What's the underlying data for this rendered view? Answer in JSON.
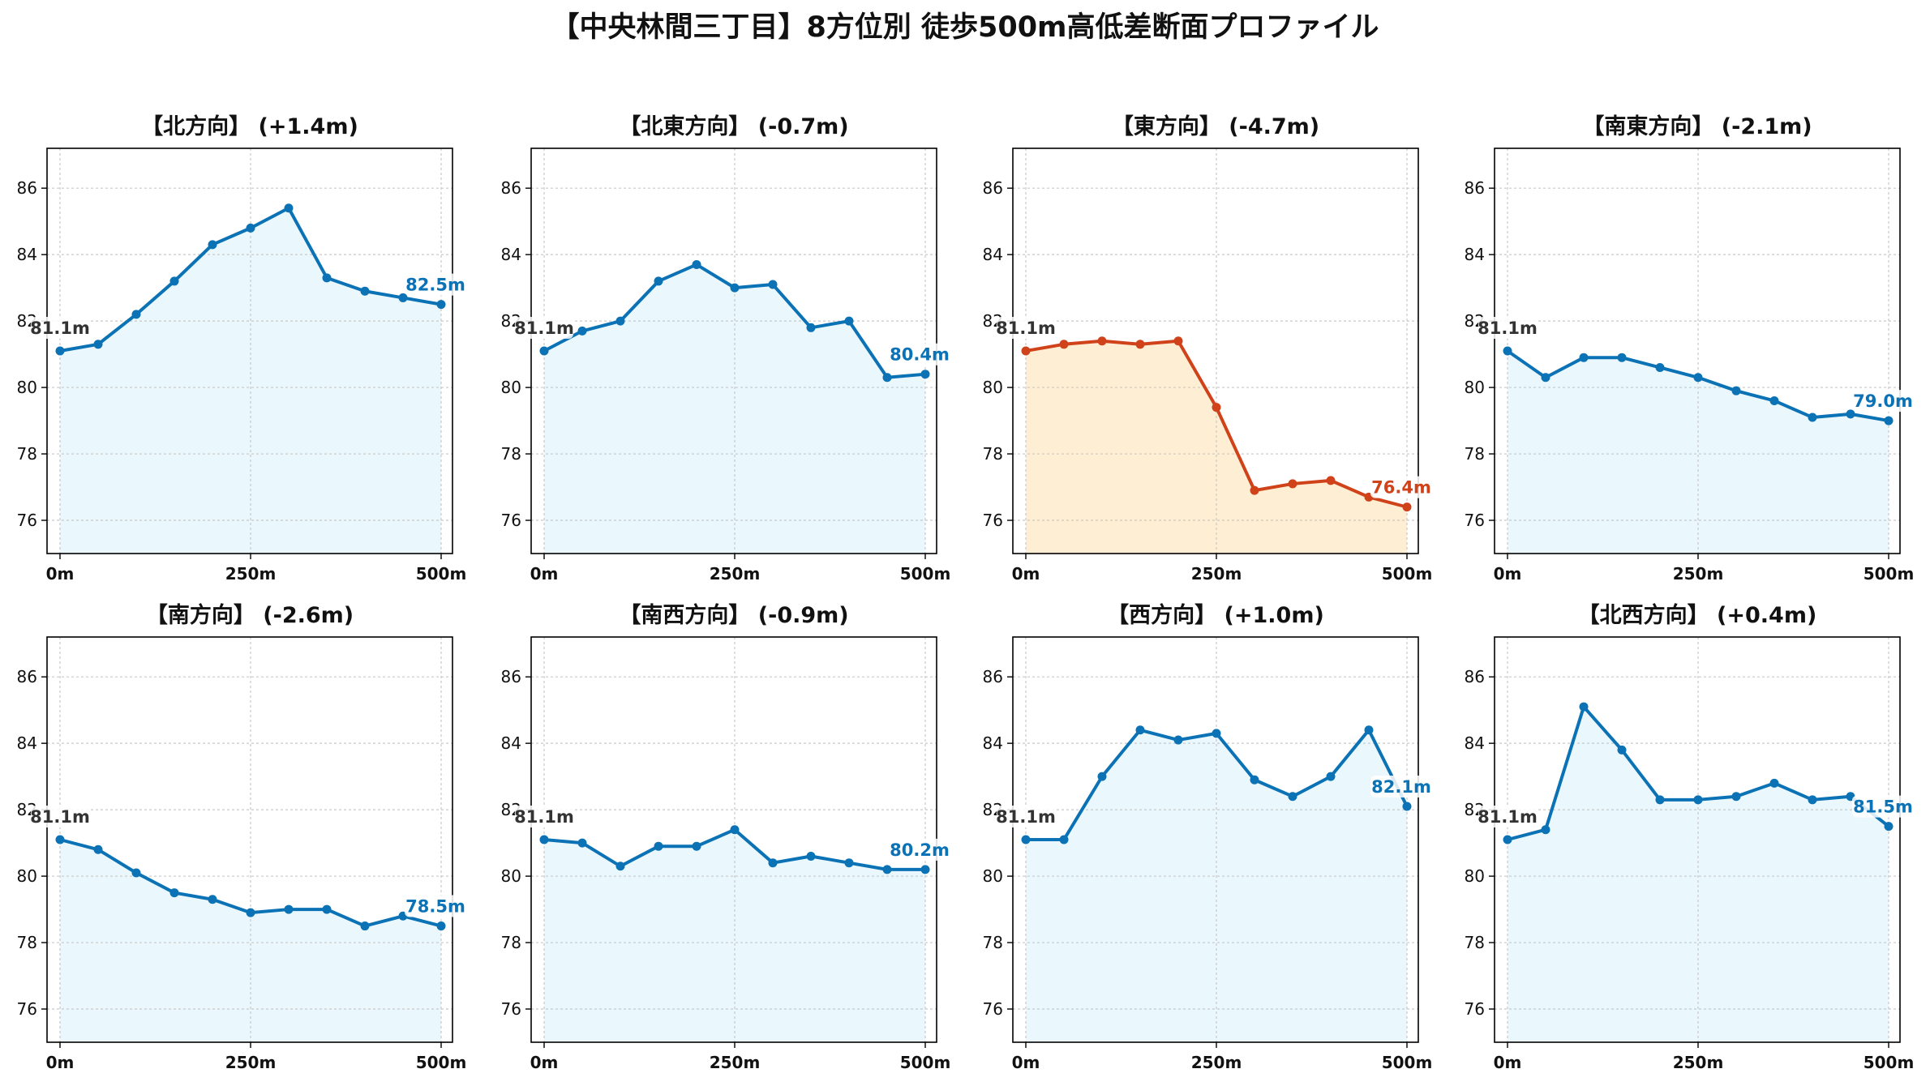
{
  "title": "【中央林間三丁目】8方位別 徒歩500m高低差断面プロファイル",
  "colors": {
    "normal_line": "#0a72b5",
    "normal_fill": "#eaf7fc",
    "alert_line": "#d0431a",
    "alert_fill": "#feeed3",
    "grid": "#c8c8c8",
    "start_label": "#333333"
  },
  "chart_data": [
    {
      "type": "area",
      "title": "【北方向】 (+1.4m)",
      "x": [
        0,
        50,
        100,
        150,
        200,
        250,
        300,
        350,
        400,
        450,
        500
      ],
      "y": [
        81.1,
        81.3,
        82.2,
        83.2,
        84.3,
        84.8,
        85.4,
        83.3,
        82.9,
        82.7,
        82.5
      ],
      "xticks": [
        0,
        250,
        500
      ],
      "xtick_labels": [
        "0m",
        "250m",
        "500m"
      ],
      "ylim": [
        75,
        87.2
      ],
      "yticks": [
        76,
        78,
        80,
        82,
        84,
        86
      ],
      "ytick_labels": [
        "76",
        "78",
        "80",
        "82",
        "84",
        "86"
      ],
      "start_label": "81.1m",
      "end_label": "82.5m",
      "highlight": false,
      "grid": true
    },
    {
      "type": "area",
      "title": "【北東方向】 (-0.7m)",
      "x": [
        0,
        50,
        100,
        150,
        200,
        250,
        300,
        350,
        400,
        450,
        500
      ],
      "y": [
        81.1,
        81.7,
        82.0,
        83.2,
        83.7,
        83.0,
        83.1,
        81.8,
        82.0,
        80.3,
        80.4
      ],
      "xticks": [
        0,
        250,
        500
      ],
      "xtick_labels": [
        "0m",
        "250m",
        "500m"
      ],
      "ylim": [
        75,
        87.2
      ],
      "yticks": [
        76,
        78,
        80,
        82,
        84,
        86
      ],
      "ytick_labels": [
        "76",
        "78",
        "80",
        "82",
        "84",
        "86"
      ],
      "start_label": "81.1m",
      "end_label": "80.4m",
      "highlight": false,
      "grid": true
    },
    {
      "type": "area",
      "title": "【東方向】 (-4.7m)",
      "x": [
        0,
        50,
        100,
        150,
        200,
        250,
        300,
        350,
        400,
        450,
        500
      ],
      "y": [
        81.1,
        81.3,
        81.4,
        81.3,
        81.4,
        79.4,
        76.9,
        77.1,
        77.2,
        76.7,
        76.4
      ],
      "xticks": [
        0,
        250,
        500
      ],
      "xtick_labels": [
        "0m",
        "250m",
        "500m"
      ],
      "ylim": [
        75,
        87.2
      ],
      "yticks": [
        76,
        78,
        80,
        82,
        84,
        86
      ],
      "ytick_labels": [
        "76",
        "78",
        "80",
        "82",
        "84",
        "86"
      ],
      "start_label": "81.1m",
      "end_label": "76.4m",
      "highlight": true,
      "grid": true
    },
    {
      "type": "area",
      "title": "【南東方向】 (-2.1m)",
      "x": [
        0,
        50,
        100,
        150,
        200,
        250,
        300,
        350,
        400,
        450,
        500
      ],
      "y": [
        81.1,
        80.3,
        80.9,
        80.9,
        80.6,
        80.3,
        79.9,
        79.6,
        79.1,
        79.2,
        79.0
      ],
      "xticks": [
        0,
        250,
        500
      ],
      "xtick_labels": [
        "0m",
        "250m",
        "500m"
      ],
      "ylim": [
        75,
        87.2
      ],
      "yticks": [
        76,
        78,
        80,
        82,
        84,
        86
      ],
      "ytick_labels": [
        "76",
        "78",
        "80",
        "82",
        "84",
        "86"
      ],
      "start_label": "81.1m",
      "end_label": "79.0m",
      "highlight": false,
      "grid": true
    },
    {
      "type": "area",
      "title": "【南方向】 (-2.6m)",
      "x": [
        0,
        50,
        100,
        150,
        200,
        250,
        300,
        350,
        400,
        450,
        500
      ],
      "y": [
        81.1,
        80.8,
        80.1,
        79.5,
        79.3,
        78.9,
        79.0,
        79.0,
        78.5,
        78.8,
        78.5
      ],
      "xticks": [
        0,
        250,
        500
      ],
      "xtick_labels": [
        "0m",
        "250m",
        "500m"
      ],
      "ylim": [
        75,
        87.2
      ],
      "yticks": [
        76,
        78,
        80,
        82,
        84,
        86
      ],
      "ytick_labels": [
        "76",
        "78",
        "80",
        "82",
        "84",
        "86"
      ],
      "start_label": "81.1m",
      "end_label": "78.5m",
      "highlight": false,
      "grid": true
    },
    {
      "type": "area",
      "title": "【南西方向】 (-0.9m)",
      "x": [
        0,
        50,
        100,
        150,
        200,
        250,
        300,
        350,
        400,
        450,
        500
      ],
      "y": [
        81.1,
        81.0,
        80.3,
        80.9,
        80.9,
        81.4,
        80.4,
        80.6,
        80.4,
        80.2,
        80.2
      ],
      "xticks": [
        0,
        250,
        500
      ],
      "xtick_labels": [
        "0m",
        "250m",
        "500m"
      ],
      "ylim": [
        75,
        87.2
      ],
      "yticks": [
        76,
        78,
        80,
        82,
        84,
        86
      ],
      "ytick_labels": [
        "76",
        "78",
        "80",
        "82",
        "84",
        "86"
      ],
      "start_label": "81.1m",
      "end_label": "80.2m",
      "highlight": false,
      "grid": true
    },
    {
      "type": "area",
      "title": "【西方向】 (+1.0m)",
      "x": [
        0,
        50,
        100,
        150,
        200,
        250,
        300,
        350,
        400,
        450,
        500
      ],
      "y": [
        81.1,
        81.1,
        83.0,
        84.4,
        84.1,
        84.3,
        82.9,
        82.4,
        83.0,
        84.4,
        82.1
      ],
      "xticks": [
        0,
        250,
        500
      ],
      "xtick_labels": [
        "0m",
        "250m",
        "500m"
      ],
      "ylim": [
        75,
        87.2
      ],
      "yticks": [
        76,
        78,
        80,
        82,
        84,
        86
      ],
      "ytick_labels": [
        "76",
        "78",
        "80",
        "82",
        "84",
        "86"
      ],
      "start_label": "81.1m",
      "end_label": "82.1m",
      "highlight": false,
      "grid": true
    },
    {
      "type": "area",
      "title": "【北西方向】 (+0.4m)",
      "x": [
        0,
        50,
        100,
        150,
        200,
        250,
        300,
        350,
        400,
        450,
        500
      ],
      "y": [
        81.1,
        81.4,
        85.1,
        83.8,
        82.3,
        82.3,
        82.4,
        82.8,
        82.3,
        82.4,
        81.5
      ],
      "xticks": [
        0,
        250,
        500
      ],
      "xtick_labels": [
        "0m",
        "250m",
        "500m"
      ],
      "ylim": [
        75,
        87.2
      ],
      "yticks": [
        76,
        78,
        80,
        82,
        84,
        86
      ],
      "ytick_labels": [
        "76",
        "78",
        "80",
        "82",
        "84",
        "86"
      ],
      "start_label": "81.1m",
      "end_label": "81.5m",
      "highlight": false,
      "grid": true
    }
  ]
}
